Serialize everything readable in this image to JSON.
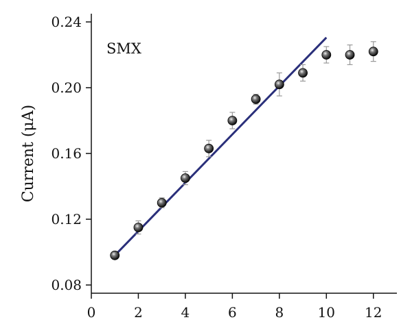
{
  "chart_data": {
    "type": "scatter",
    "title": "",
    "annotation": "SMX",
    "xlabel": "",
    "ylabel": "Current (μA)",
    "xlim": [
      0,
      13
    ],
    "ylim": [
      0.075,
      0.245
    ],
    "xticks": [
      0,
      2,
      4,
      6,
      8,
      10,
      12
    ],
    "yticks": [
      0.08,
      0.12,
      0.16,
      0.2,
      0.24
    ],
    "xtick_labels": [
      "0",
      "2",
      "4",
      "6",
      "8",
      "10",
      "12"
    ],
    "ytick_labels": [
      "0.08",
      "0.12",
      "0.16",
      "0.20",
      "0.24"
    ],
    "grid": false,
    "series": [
      {
        "x": [
          1,
          2,
          3,
          4,
          5,
          6,
          7,
          8,
          9,
          10,
          11,
          12
        ],
        "y": [
          0.098,
          0.115,
          0.13,
          0.145,
          0.163,
          0.18,
          0.193,
          0.202,
          0.209,
          0.22,
          0.22,
          0.222
        ],
        "error": [
          0.002,
          0.004,
          0.003,
          0.004,
          0.005,
          0.005,
          0.003,
          0.007,
          0.005,
          0.005,
          0.006,
          0.006
        ],
        "color": "#111111"
      }
    ],
    "fit_line": {
      "x": [
        1,
        10
      ],
      "y": [
        0.098,
        0.2305
      ],
      "color": "#2a2f7a"
    }
  }
}
